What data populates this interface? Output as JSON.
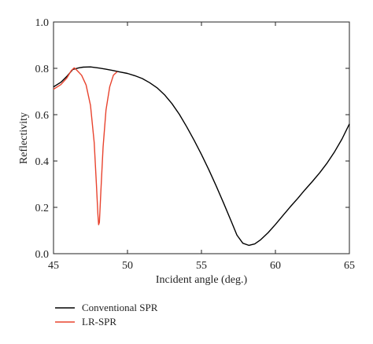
{
  "chart_data": {
    "type": "line",
    "title": "",
    "xlabel": "Incident angle (deg.)",
    "ylabel": "Reflectivity",
    "xlim": [
      45,
      65
    ],
    "ylim": [
      0.0,
      1.0
    ],
    "x_ticks": [
      45,
      50,
      55,
      60,
      65
    ],
    "y_ticks": [
      0.0,
      0.2,
      0.4,
      0.6,
      0.8,
      1.0
    ],
    "x_tick_labels": [
      "45",
      "50",
      "55",
      "60",
      "65"
    ],
    "y_tick_labels": [
      "0.0",
      "0.2",
      "0.4",
      "0.6",
      "0.8",
      "1.0"
    ],
    "grid": false,
    "legend_position": "bottom-left, below plot",
    "series": [
      {
        "name": "Conventional SPR",
        "color": "#000000",
        "points": [
          [
            45.0,
            0.72
          ],
          [
            45.5,
            0.74
          ],
          [
            45.9,
            0.765
          ],
          [
            46.3,
            0.795
          ],
          [
            46.7,
            0.802
          ],
          [
            47.0,
            0.805
          ],
          [
            47.5,
            0.806
          ],
          [
            48.0,
            0.802
          ],
          [
            48.5,
            0.797
          ],
          [
            49.0,
            0.791
          ],
          [
            49.5,
            0.784
          ],
          [
            50.0,
            0.778
          ],
          [
            50.5,
            0.768
          ],
          [
            51.0,
            0.756
          ],
          [
            51.5,
            0.738
          ],
          [
            52.0,
            0.716
          ],
          [
            52.5,
            0.686
          ],
          [
            53.0,
            0.648
          ],
          [
            53.5,
            0.602
          ],
          [
            54.0,
            0.548
          ],
          [
            54.5,
            0.49
          ],
          [
            55.0,
            0.428
          ],
          [
            55.5,
            0.362
          ],
          [
            56.0,
            0.292
          ],
          [
            56.5,
            0.218
          ],
          [
            57.0,
            0.142
          ],
          [
            57.4,
            0.08
          ],
          [
            57.8,
            0.045
          ],
          [
            58.2,
            0.036
          ],
          [
            58.6,
            0.042
          ],
          [
            59.0,
            0.06
          ],
          [
            59.5,
            0.09
          ],
          [
            60.0,
            0.126
          ],
          [
            60.5,
            0.164
          ],
          [
            61.0,
            0.202
          ],
          [
            61.5,
            0.238
          ],
          [
            62.0,
            0.276
          ],
          [
            62.5,
            0.312
          ],
          [
            63.0,
            0.35
          ],
          [
            63.5,
            0.392
          ],
          [
            64.0,
            0.44
          ],
          [
            64.5,
            0.495
          ],
          [
            65.0,
            0.56
          ]
        ]
      },
      {
        "name": "LR-SPR",
        "color": "#e8432e",
        "points": [
          [
            45.0,
            0.71
          ],
          [
            45.5,
            0.73
          ],
          [
            45.9,
            0.758
          ],
          [
            46.2,
            0.79
          ],
          [
            46.4,
            0.802
          ],
          [
            46.6,
            0.79
          ],
          [
            46.9,
            0.77
          ],
          [
            47.2,
            0.728
          ],
          [
            47.5,
            0.64
          ],
          [
            47.75,
            0.48
          ],
          [
            47.9,
            0.3
          ],
          [
            48.0,
            0.17
          ],
          [
            48.05,
            0.125
          ],
          [
            48.1,
            0.135
          ],
          [
            48.2,
            0.27
          ],
          [
            48.35,
            0.46
          ],
          [
            48.55,
            0.62
          ],
          [
            48.8,
            0.72
          ],
          [
            49.05,
            0.77
          ],
          [
            49.3,
            0.785
          ]
        ]
      }
    ]
  }
}
